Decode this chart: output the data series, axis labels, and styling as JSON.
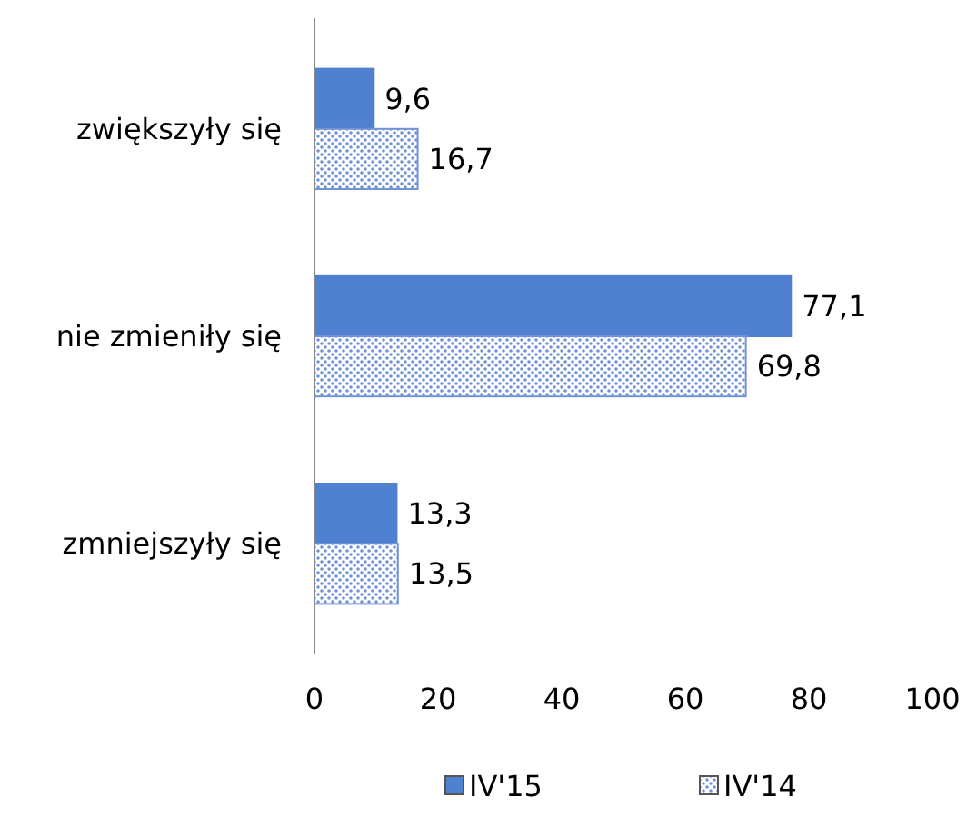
{
  "chart_data": {
    "type": "bar",
    "orientation": "horizontal",
    "categories": [
      "zwiększyły się",
      "nie zmieniły się",
      "zmniejszyły się"
    ],
    "series": [
      {
        "name": "IV'15",
        "color": "#4f81d0",
        "values": [
          9.6,
          77.1,
          13.3
        ],
        "value_labels": [
          "9,6",
          "77,1",
          "13,3"
        ]
      },
      {
        "name": "IV'14",
        "color": "#6f93d6",
        "values": [
          16.7,
          69.8,
          13.5
        ],
        "value_labels": [
          "16,7",
          "69,8",
          "13,5"
        ]
      }
    ],
    "xlim": [
      0,
      100
    ],
    "xticks": [
      0,
      20,
      40,
      60,
      80,
      100
    ],
    "legend": "bottom",
    "grid": false
  }
}
